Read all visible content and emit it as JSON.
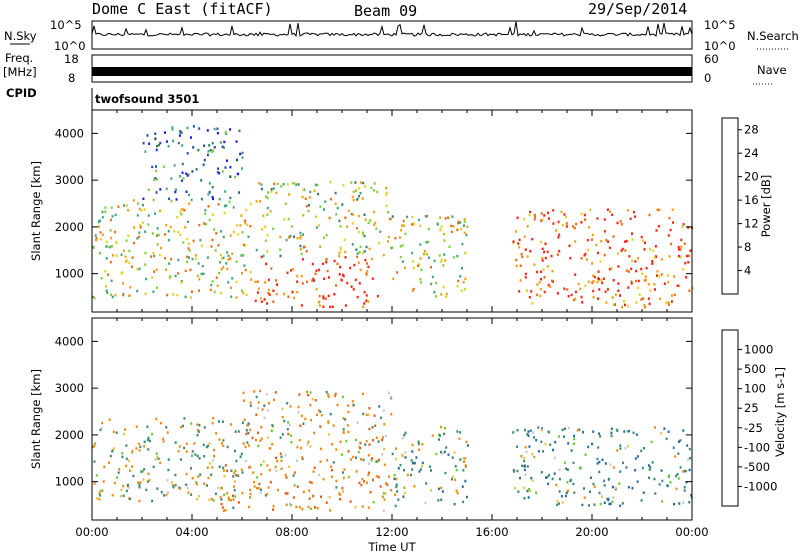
{
  "header": {
    "radar": "Dome C East (fitACF)",
    "beam": "Beam 09",
    "date": "29/Sep/2014"
  },
  "top_panels": {
    "nsky_label": "N.Sky",
    "nsearch_label": "N.Search",
    "freq_label_1": "Freq.",
    "freq_label_2": "[MHz]",
    "nave_label": "Nave",
    "cpid_label": "CPID",
    "cpid_value": "twofsound 3501",
    "noise_ticks": [
      "10^5",
      "10^0"
    ],
    "freq_ticks": [
      "18",
      "8"
    ],
    "nave_ticks": [
      "60",
      "0"
    ]
  },
  "chart_data": [
    {
      "type": "heatmap",
      "name": "power",
      "ylabel": "Slant Range [km]",
      "xlabel": "Time UT",
      "x_ticks": [
        "00:00",
        "04:00",
        "08:00",
        "12:00",
        "16:00",
        "20:00",
        "00:00"
      ],
      "y_ticks": [
        "1000",
        "2000",
        "3000",
        "4000"
      ],
      "ylim": [
        180,
        4500
      ],
      "xlim_hours": [
        0,
        24
      ],
      "colorbar_label": "Power [dB]",
      "colorbar_ticks": [
        "4",
        "8",
        "12",
        "16",
        "20",
        "24",
        "28"
      ],
      "colorbar_range": [
        0,
        30
      ],
      "colors": [
        "#1a1aff",
        "#1f4fa8",
        "#2f7f5f",
        "#3fa57a",
        "#7ecf3a",
        "#e5d020",
        "#f0a010",
        "#f06a10",
        "#ff2010"
      ],
      "scatter_regions": [
        {
          "t_start": 0.0,
          "t_end": 6.5,
          "r_low": 500,
          "r_high": 2600,
          "power": 18
        },
        {
          "t_start": 2.0,
          "t_end": 6.0,
          "r_low": 2600,
          "r_high": 4200,
          "power": 8
        },
        {
          "t_start": 6.5,
          "t_end": 11.5,
          "r_low": 300,
          "r_high": 1400,
          "power": 28
        },
        {
          "t_start": 6.5,
          "t_end": 12.0,
          "r_low": 1400,
          "r_high": 3000,
          "power": 16
        },
        {
          "t_start": 12.0,
          "t_end": 15.0,
          "r_low": 500,
          "r_high": 2300,
          "power": 18
        },
        {
          "t_start": 16.8,
          "t_end": 24.0,
          "r_low": 300,
          "r_high": 2400,
          "power": 26
        }
      ]
    },
    {
      "type": "heatmap",
      "name": "velocity",
      "ylabel": "Slant Range [km]",
      "xlabel": "Time UT",
      "x_ticks": [
        "00:00",
        "04:00",
        "08:00",
        "12:00",
        "16:00",
        "20:00",
        "00:00"
      ],
      "y_ticks": [
        "1000",
        "2000",
        "3000",
        "4000"
      ],
      "ylim": [
        180,
        4500
      ],
      "xlim_hours": [
        0,
        24
      ],
      "colorbar_label": "Velocity [m s-1]",
      "colorbar_ticks": [
        "1000",
        "500",
        "100",
        "25",
        "-25",
        "-100",
        "-500",
        "-1000"
      ],
      "colors": [
        "#1a3fbf",
        "#2a6aa0",
        "#3a8a70",
        "#66cc33",
        "#c8c8c8",
        "#f0c040",
        "#f08a10",
        "#f05a10",
        "#ff1a1a"
      ],
      "scatter_regions": [
        {
          "t_start": 0.0,
          "t_end": 6.0,
          "r_low": 600,
          "r_high": 2400,
          "velocity": 0
        },
        {
          "t_start": 5.0,
          "t_end": 12.0,
          "r_low": 400,
          "r_high": 1400,
          "velocity": -300
        },
        {
          "t_start": 6.0,
          "t_end": 12.0,
          "r_low": 1400,
          "r_high": 3000,
          "velocity": -200
        },
        {
          "t_start": 12.0,
          "t_end": 15.0,
          "r_low": 500,
          "r_high": 2200,
          "velocity": 200
        },
        {
          "t_start": 16.8,
          "t_end": 24.0,
          "r_low": 500,
          "r_high": 2200,
          "velocity": 300
        }
      ]
    }
  ]
}
